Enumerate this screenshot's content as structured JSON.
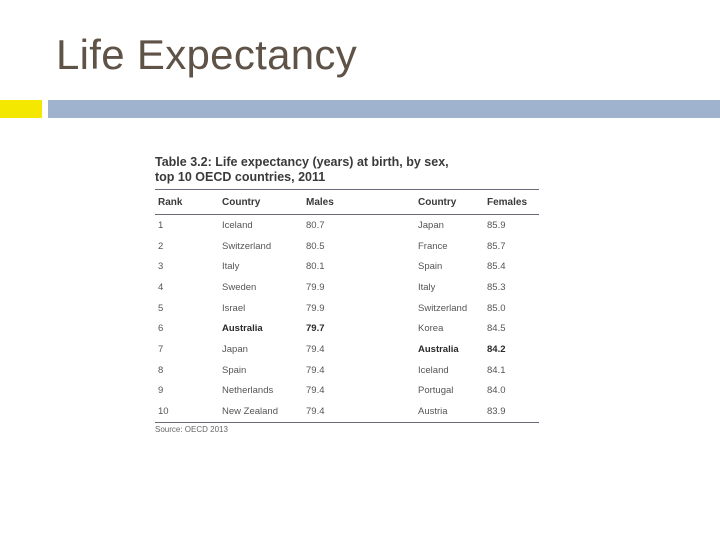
{
  "slide": {
    "title": "Life Expectancy",
    "colors": {
      "accent_square": "#f5e800",
      "accent_bar": "#9fb3cf",
      "title": "#5f5348"
    }
  },
  "table": {
    "caption_line1": "Table 3.2: Life expectancy (years) at birth, by sex,",
    "caption_line2": "top 10 OECD countries, 2011",
    "headers": [
      "Rank",
      "Country",
      "Males",
      "Country",
      "Females"
    ],
    "rows": [
      {
        "rank": "1",
        "country_m": "Iceland",
        "males": "80.7",
        "country_f": "Japan",
        "females": "85.9"
      },
      {
        "rank": "2",
        "country_m": "Switzerland",
        "males": "80.5",
        "country_f": "France",
        "females": "85.7"
      },
      {
        "rank": "3",
        "country_m": "Italy",
        "males": "80.1",
        "country_f": "Spain",
        "females": "85.4"
      },
      {
        "rank": "4",
        "country_m": "Sweden",
        "males": "79.9",
        "country_f": "Italy",
        "females": "85.3"
      },
      {
        "rank": "5",
        "country_m": "Israel",
        "males": "79.9",
        "country_f": "Switzerland",
        "females": "85.0"
      },
      {
        "rank": "6",
        "country_m": "Australia",
        "males": "79.7",
        "country_f": "Korea",
        "females": "84.5"
      },
      {
        "rank": "7",
        "country_m": "Japan",
        "males": "79.4",
        "country_f": "Australia",
        "females": "84.2"
      },
      {
        "rank": "8",
        "country_m": "Spain",
        "males": "79.4",
        "country_f": "Iceland",
        "females": "84.1"
      },
      {
        "rank": "9",
        "country_m": "Netherlands",
        "males": "79.4",
        "country_f": "Portugal",
        "females": "84.0"
      },
      {
        "rank": "10",
        "country_m": "New Zealand",
        "males": "79.4",
        "country_f": "Austria",
        "females": "83.9"
      }
    ],
    "bold_male_row": 5,
    "bold_female_row": 6,
    "source": "Source: OECD 2013"
  }
}
